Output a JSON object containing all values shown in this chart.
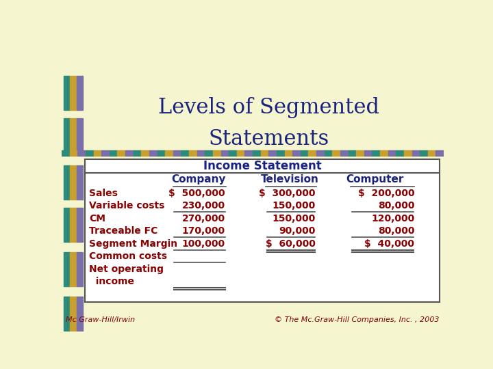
{
  "title_line1": "Levels of Segmented",
  "title_line2": "Statements",
  "title_color": "#1a237e",
  "bg_color": "#f5f5d0",
  "table_header": "Income Statement",
  "col_header_color": "#1a237e",
  "col_headers": [
    "Company",
    "Television",
    "Computer"
  ],
  "row_label_color": "#8b0000",
  "data_color": "#8b0000",
  "row_labels": [
    "Sales",
    "Variable costs",
    "CM",
    "Traceable FC",
    "Segment Margin",
    "Common costs",
    "Net operating",
    "  income"
  ],
  "company_values": [
    "$  500,000",
    "230,000",
    "270,000",
    "170,000",
    "100,000",
    "",
    "",
    ""
  ],
  "television_values": [
    "$  300,000",
    "150,000",
    "150,000",
    "90,000",
    "$  60,000",
    "",
    "",
    ""
  ],
  "computer_values": [
    "$  200,000",
    "80,000",
    "120,000",
    "80,000",
    "$  40,000",
    "",
    "",
    ""
  ],
  "footer_left": "Mc Graw-Hill/Irwin",
  "footer_right": "© The Mc.Graw-Hill Companies, Inc. , 2003",
  "footer_color": "#8b0000",
  "stripe_colors": [
    "#2e8b7a",
    "#c8a030",
    "#7b6faa"
  ],
  "stripe_border_color": "#555555"
}
